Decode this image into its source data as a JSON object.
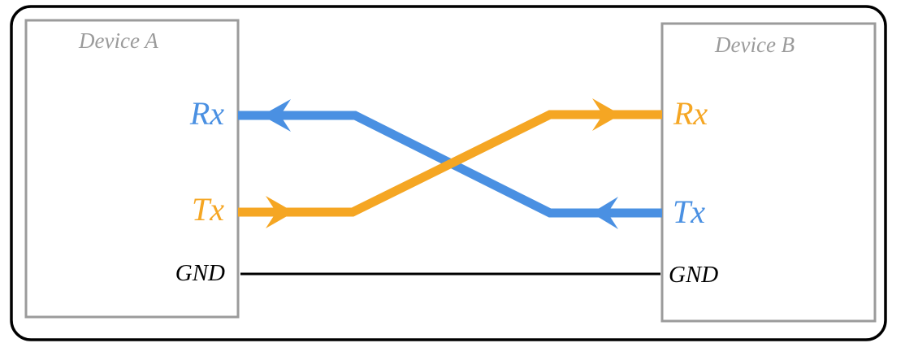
{
  "colors": {
    "line_a_to_b": "#f5a623",
    "line_b_to_a": "#4a90e2",
    "box": "#9b9b9b",
    "ground": "#000000"
  },
  "device_a": {
    "title": "Device A",
    "rx": "Rx",
    "tx": "Tx",
    "gnd": "GND"
  },
  "device_b": {
    "title": "Device B",
    "rx": "Rx",
    "tx": "Tx",
    "gnd": "GND"
  }
}
